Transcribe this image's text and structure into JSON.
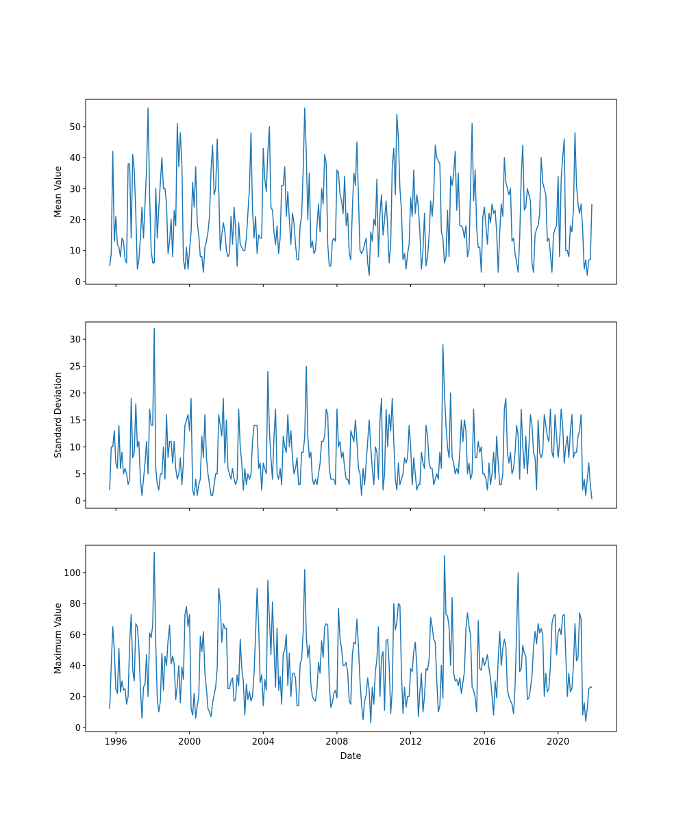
{
  "chart_data": [
    {
      "type": "line",
      "ylabel": "Mean Value",
      "color": "#1f77b4",
      "ylim": [
        -0.9,
        58.8
      ],
      "yticks": [
        0,
        10,
        20,
        30,
        40,
        50
      ],
      "values": [
        5,
        9,
        42,
        13,
        21,
        12,
        11,
        8,
        14,
        13,
        7,
        6,
        38,
        38,
        14,
        41,
        36,
        22,
        4,
        7,
        14,
        24,
        14,
        25,
        36,
        56,
        28,
        10,
        6,
        6,
        30,
        14,
        24,
        32,
        40,
        30,
        30,
        25,
        9,
        13,
        20,
        8,
        23,
        18,
        51,
        37,
        48,
        38,
        7,
        4,
        11,
        4,
        10,
        16,
        32,
        24,
        37,
        19,
        15,
        8,
        8,
        3,
        11,
        13,
        16,
        21,
        36,
        44,
        28,
        30,
        46,
        30,
        10,
        15,
        19,
        16,
        10,
        8,
        9,
        21,
        12,
        24,
        17,
        5,
        19,
        12,
        11,
        10,
        10,
        14,
        22,
        30,
        48,
        23,
        14,
        21,
        9,
        15,
        14,
        14,
        43,
        33,
        29,
        42,
        50,
        24,
        23,
        16,
        12,
        18,
        9,
        14,
        31,
        31,
        37,
        21,
        29,
        20,
        12,
        22,
        19,
        12,
        7,
        7,
        18,
        21,
        36,
        56,
        42,
        20,
        35,
        11,
        13,
        9,
        10,
        18,
        25,
        16,
        30,
        25,
        41,
        38,
        12,
        5,
        5,
        13,
        14,
        13,
        36,
        35,
        28,
        26,
        22,
        34,
        18,
        22,
        9,
        7,
        23,
        35,
        31,
        45,
        27,
        10,
        9,
        10,
        12,
        14,
        6,
        2,
        16,
        13,
        20,
        18,
        33,
        8,
        22,
        28,
        15,
        20,
        26,
        18,
        6,
        12,
        37,
        43,
        28,
        54,
        46,
        30,
        23,
        7,
        9,
        4,
        9,
        12,
        27,
        21,
        36,
        22,
        28,
        24,
        16,
        4,
        10,
        22,
        5,
        8,
        15,
        26,
        21,
        28,
        44,
        40,
        39,
        38,
        16,
        14,
        6,
        8,
        23,
        8,
        34,
        31,
        35,
        42,
        23,
        35,
        18,
        18,
        17,
        14,
        18,
        8,
        10,
        30,
        51,
        26,
        36,
        17,
        11,
        11,
        3,
        21,
        24,
        18,
        12,
        22,
        19,
        25,
        22,
        23,
        16,
        3,
        16,
        25,
        21,
        40,
        32,
        30,
        28,
        30,
        13,
        14,
        9,
        6,
        3,
        14,
        34,
        44,
        23,
        24,
        30,
        28,
        26,
        6,
        3,
        15,
        17,
        18,
        22,
        40,
        32,
        30,
        28,
        13,
        14,
        9,
        3,
        15,
        17,
        18,
        34,
        8,
        33,
        40,
        46,
        10,
        10,
        8,
        18,
        16,
        23,
        48,
        31,
        25,
        22,
        25,
        17,
        4,
        7,
        2,
        7,
        7,
        25
      ]
    },
    {
      "type": "line",
      "ylabel": "Standard Deviation",
      "color": "#1f77b4",
      "ylim": [
        -1.4,
        33.2
      ],
      "yticks": [
        0,
        5,
        10,
        15,
        20,
        25,
        30
      ],
      "values": [
        2,
        10,
        10,
        13,
        7,
        6,
        14,
        6,
        9,
        5,
        6,
        5,
        3,
        4,
        19,
        8,
        9,
        18,
        10,
        11,
        4,
        1,
        4,
        7,
        11,
        5,
        17,
        14,
        14,
        32,
        6,
        3,
        2,
        5,
        5,
        10,
        4,
        16,
        8,
        11,
        11,
        7,
        11,
        6,
        4,
        5,
        8,
        3,
        7,
        14,
        15,
        16,
        13,
        19,
        2,
        1,
        4,
        1,
        3,
        4,
        12,
        8,
        16,
        8,
        5,
        3,
        1,
        1,
        3,
        5,
        5,
        16,
        14,
        12,
        19,
        7,
        15,
        6,
        5,
        4,
        6,
        4,
        3,
        4,
        17,
        10,
        7,
        2,
        6,
        3,
        5,
        4,
        5,
        11,
        14,
        14,
        14,
        6,
        7,
        2,
        7,
        6,
        5,
        24,
        13,
        8,
        4,
        12,
        17,
        5,
        4,
        6,
        3,
        12,
        10,
        9,
        16,
        10,
        13,
        8,
        5,
        6,
        8,
        3,
        3,
        9,
        9,
        12,
        25,
        12,
        8,
        9,
        4,
        3,
        4,
        3,
        5,
        7,
        11,
        11,
        12,
        17,
        16,
        6,
        4,
        4,
        4,
        3,
        17,
        10,
        11,
        8,
        9,
        6,
        4,
        4,
        3,
        13,
        12,
        11,
        15,
        11,
        6,
        5,
        1,
        6,
        3,
        7,
        11,
        15,
        10,
        6,
        3,
        10,
        9,
        4,
        15,
        19,
        2,
        5,
        17,
        10,
        16,
        13,
        19,
        11,
        4,
        2,
        7,
        3,
        4,
        5,
        8,
        7,
        8,
        14,
        10,
        3,
        8,
        5,
        2,
        3,
        3,
        9,
        7,
        6,
        14,
        12,
        7,
        6,
        6,
        3,
        4,
        5,
        4,
        9,
        6,
        29,
        20,
        14,
        10,
        8,
        20,
        8,
        7,
        5,
        6,
        5,
        9,
        15,
        11,
        15,
        13,
        5,
        7,
        4,
        5,
        17,
        8,
        8,
        11,
        9,
        10,
        5,
        5,
        4,
        2,
        7,
        3,
        5,
        9,
        4,
        12,
        7,
        3,
        3,
        5,
        17,
        19,
        9,
        7,
        9,
        5,
        6,
        9,
        14,
        12,
        4,
        17,
        10,
        6,
        12,
        5,
        10,
        16,
        14,
        9,
        8,
        2,
        15,
        9,
        8,
        9,
        16,
        14,
        12,
        11,
        17,
        9,
        8,
        16,
        12,
        8,
        11,
        17,
        14,
        7,
        10,
        12,
        8,
        13,
        16,
        8,
        9,
        9,
        12,
        13,
        16,
        2,
        4,
        1,
        4,
        7,
        3,
        0.3
      ]
    },
    {
      "type": "line",
      "ylabel": "Maximum Value",
      "xlabel": "Date",
      "color": "#1f77b4",
      "ylim": [
        -2.7,
        117.7
      ],
      "yticks": [
        0,
        20,
        40,
        60,
        80,
        100
      ],
      "xlim": [
        1994.36,
        2023.17
      ],
      "xticks": [
        1996,
        2000,
        2004,
        2008,
        2012,
        2016,
        2020
      ],
      "x": [
        "1995-09",
        "1995-10",
        "1995-11",
        "1995-12",
        "1996-01",
        "1996-02",
        "1996-03",
        "1996-04",
        "1996-05",
        "1996-06",
        "1996-07",
        "1996-08",
        "1996-09",
        "1996-10",
        "1996-11",
        "1996-12",
        "1997-01",
        "1997-02",
        "1997-03",
        "1997-04",
        "1997-05",
        "1997-06",
        "1997-07",
        "1997-08",
        "1997-09",
        "1997-10",
        "1997-11",
        "1997-12",
        "1998-01",
        "1998-02",
        "1998-03",
        "1998-04",
        "1998-05",
        "1998-06",
        "1998-07",
        "1998-08",
        "1998-09",
        "1998-10",
        "1998-11",
        "1998-12",
        "1999-01",
        "1999-02",
        "1999-03",
        "1999-04",
        "1999-05",
        "1999-06",
        "1999-07",
        "1999-08",
        "1999-09",
        "1999-10",
        "1999-11",
        "1999-12",
        "2000-01",
        "2000-02",
        "2000-03",
        "2000-04",
        "2000-05",
        "2000-06",
        "2000-07",
        "2000-08",
        "2000-09",
        "2000-10",
        "2000-11",
        "2000-12",
        "2001-01",
        "2001-02",
        "2001-03",
        "2001-04",
        "2001-05",
        "2001-06",
        "2001-07",
        "2001-08",
        "2001-09",
        "2001-10",
        "2001-11",
        "2001-12",
        "2002-01",
        "2002-02",
        "2002-03",
        "2002-04",
        "2002-05",
        "2002-06",
        "2002-07",
        "2002-08",
        "2002-09",
        "2002-10",
        "2002-11",
        "2002-12",
        "2003-01",
        "2003-02",
        "2003-03",
        "2003-04",
        "2003-05",
        "2003-06",
        "2003-07",
        "2003-08",
        "2003-09",
        "2003-10",
        "2003-11",
        "2003-12",
        "2004-01",
        "2004-02",
        "2004-03",
        "2004-04",
        "2004-05",
        "2004-06",
        "2004-07",
        "2004-08",
        "2004-09",
        "2004-10",
        "2004-11",
        "2004-12",
        "2005-01",
        "2005-02",
        "2005-03",
        "2005-04",
        "2005-05",
        "2005-06",
        "2005-07",
        "2005-08",
        "2005-09",
        "2005-10",
        "2005-11",
        "2005-12",
        "2006-01",
        "2006-02",
        "2006-03",
        "2006-04",
        "2006-05",
        "2006-06",
        "2006-07",
        "2006-08",
        "2006-09",
        "2006-10",
        "2006-11",
        "2006-12",
        "2007-01",
        "2007-02",
        "2007-03",
        "2007-04",
        "2007-05",
        "2007-06",
        "2007-07",
        "2007-08",
        "2007-09",
        "2007-10",
        "2007-11",
        "2007-12",
        "2008-01",
        "2008-02",
        "2008-03",
        "2008-04",
        "2008-05",
        "2008-06",
        "2008-07",
        "2008-08",
        "2008-09",
        "2008-10",
        "2008-11",
        "2008-12",
        "2009-01",
        "2009-02",
        "2009-03",
        "2009-04",
        "2009-05",
        "2009-06",
        "2009-07",
        "2009-08",
        "2009-09",
        "2009-10",
        "2009-11",
        "2009-12",
        "2010-01",
        "2010-02",
        "2010-03",
        "2010-04",
        "2010-05",
        "2010-06",
        "2010-07",
        "2010-08",
        "2010-09",
        "2010-10",
        "2010-11",
        "2010-12",
        "2011-01",
        "2011-02",
        "2011-03",
        "2011-04",
        "2011-05",
        "2011-06",
        "2011-07",
        "2011-08",
        "2011-09",
        "2011-10",
        "2011-11",
        "2011-12",
        "2012-01",
        "2012-02",
        "2012-03",
        "2012-04",
        "2012-05",
        "2012-06",
        "2012-07",
        "2012-08",
        "2012-09",
        "2012-10",
        "2012-11",
        "2012-12",
        "2013-01",
        "2013-02",
        "2013-03",
        "2013-04",
        "2013-05",
        "2013-06",
        "2013-07",
        "2013-08",
        "2013-09",
        "2013-10",
        "2013-11",
        "2013-12",
        "2014-01",
        "2014-02",
        "2014-03",
        "2014-04",
        "2014-05",
        "2014-06",
        "2014-07",
        "2014-08",
        "2014-09",
        "2014-10",
        "2014-11",
        "2014-12",
        "2015-01",
        "2015-02",
        "2015-03",
        "2015-04",
        "2015-05",
        "2015-06",
        "2015-07",
        "2015-08",
        "2015-09",
        "2015-10",
        "2015-11",
        "2015-12",
        "2016-01",
        "2016-02",
        "2016-03",
        "2016-04",
        "2016-05",
        "2016-06",
        "2016-07",
        "2016-08",
        "2016-09",
        "2016-10",
        "2016-11",
        "2016-12",
        "2017-01",
        "2017-02",
        "2017-03",
        "2017-04",
        "2017-05",
        "2017-06",
        "2017-07",
        "2017-08",
        "2017-09",
        "2017-10",
        "2017-11",
        "2017-12",
        "2018-01",
        "2018-02",
        "2018-03",
        "2018-04",
        "2018-05",
        "2018-06",
        "2018-07",
        "2018-08",
        "2018-09",
        "2018-10",
        "2018-11",
        "2018-12",
        "2019-01",
        "2019-02",
        "2019-03",
        "2019-04",
        "2019-05",
        "2019-06",
        "2019-07",
        "2019-08",
        "2019-09",
        "2019-10",
        "2019-11",
        "2019-12",
        "2020-01",
        "2020-02",
        "2020-03",
        "2020-04",
        "2020-05",
        "2020-06",
        "2020-07",
        "2020-08",
        "2020-09",
        "2020-10",
        "2020-11",
        "2020-12",
        "2021-01",
        "2021-02",
        "2021-03",
        "2021-04",
        "2021-05",
        "2021-06",
        "2021-07",
        "2021-08",
        "2021-09",
        "2021-10",
        "2021-11"
      ],
      "values": [
        12,
        40,
        65,
        50,
        25,
        22,
        51,
        23,
        30,
        24,
        25,
        15,
        20,
        55,
        73,
        37,
        30,
        67,
        65,
        52,
        25,
        6,
        26,
        28,
        47,
        20,
        61,
        58,
        66,
        113,
        54,
        18,
        10,
        17,
        48,
        24,
        46,
        40,
        56,
        66,
        41,
        46,
        41,
        18,
        27,
        40,
        16,
        39,
        31,
        73,
        78,
        65,
        73,
        12,
        8,
        22,
        6,
        14,
        20,
        59,
        49,
        62,
        35,
        25,
        12,
        10,
        7,
        16,
        21,
        26,
        38,
        90,
        80,
        55,
        67,
        64,
        64,
        25,
        25,
        30,
        32,
        17,
        18,
        34,
        27,
        57,
        38,
        30,
        8,
        28,
        18,
        23,
        17,
        20,
        35,
        60,
        90,
        66,
        29,
        34,
        14,
        31,
        24,
        95,
        70,
        47,
        81,
        52,
        26,
        64,
        24,
        33,
        15,
        48,
        50,
        60,
        27,
        48,
        20,
        35,
        35,
        32,
        14,
        14,
        41,
        44,
        62,
        102,
        60,
        45,
        53,
        28,
        20,
        18,
        17,
        25,
        42,
        35,
        56,
        45,
        65,
        67,
        66,
        28,
        13,
        16,
        22,
        24,
        19,
        77,
        57,
        51,
        40,
        40,
        42,
        35,
        17,
        15,
        47,
        55,
        54,
        70,
        52,
        30,
        15,
        5,
        17,
        21,
        32,
        24,
        3,
        26,
        15,
        36,
        44,
        65,
        20,
        45,
        49,
        11,
        56,
        57,
        40,
        9,
        24,
        80,
        63,
        68,
        80,
        79,
        35,
        9,
        26,
        13,
        20,
        20,
        38,
        36,
        49,
        55,
        40,
        7,
        23,
        35,
        10,
        20,
        38,
        37,
        44,
        71,
        65,
        57,
        55,
        30,
        10,
        14,
        40,
        19,
        111,
        73,
        72,
        65,
        40,
        84,
        35,
        30,
        31,
        27,
        32,
        22,
        29,
        36,
        64,
        74,
        65,
        60,
        26,
        24,
        19,
        10,
        69,
        38,
        37,
        45,
        40,
        43,
        47,
        38,
        32,
        20,
        8,
        30,
        19,
        44,
        62,
        40,
        51,
        57,
        52,
        24,
        20,
        17,
        15,
        9,
        27,
        62,
        100,
        36,
        38,
        53,
        48,
        46,
        18,
        19,
        25,
        33,
        52,
        62,
        54,
        67,
        61,
        64,
        60,
        20,
        35,
        23,
        25,
        40,
        67,
        72,
        73,
        47,
        61,
        64,
        60,
        72,
        73,
        47,
        20,
        35,
        23,
        25,
        40,
        67,
        43,
        45,
        74,
        70,
        8,
        16,
        4,
        12,
        25,
        26,
        26
      ]
    }
  ]
}
